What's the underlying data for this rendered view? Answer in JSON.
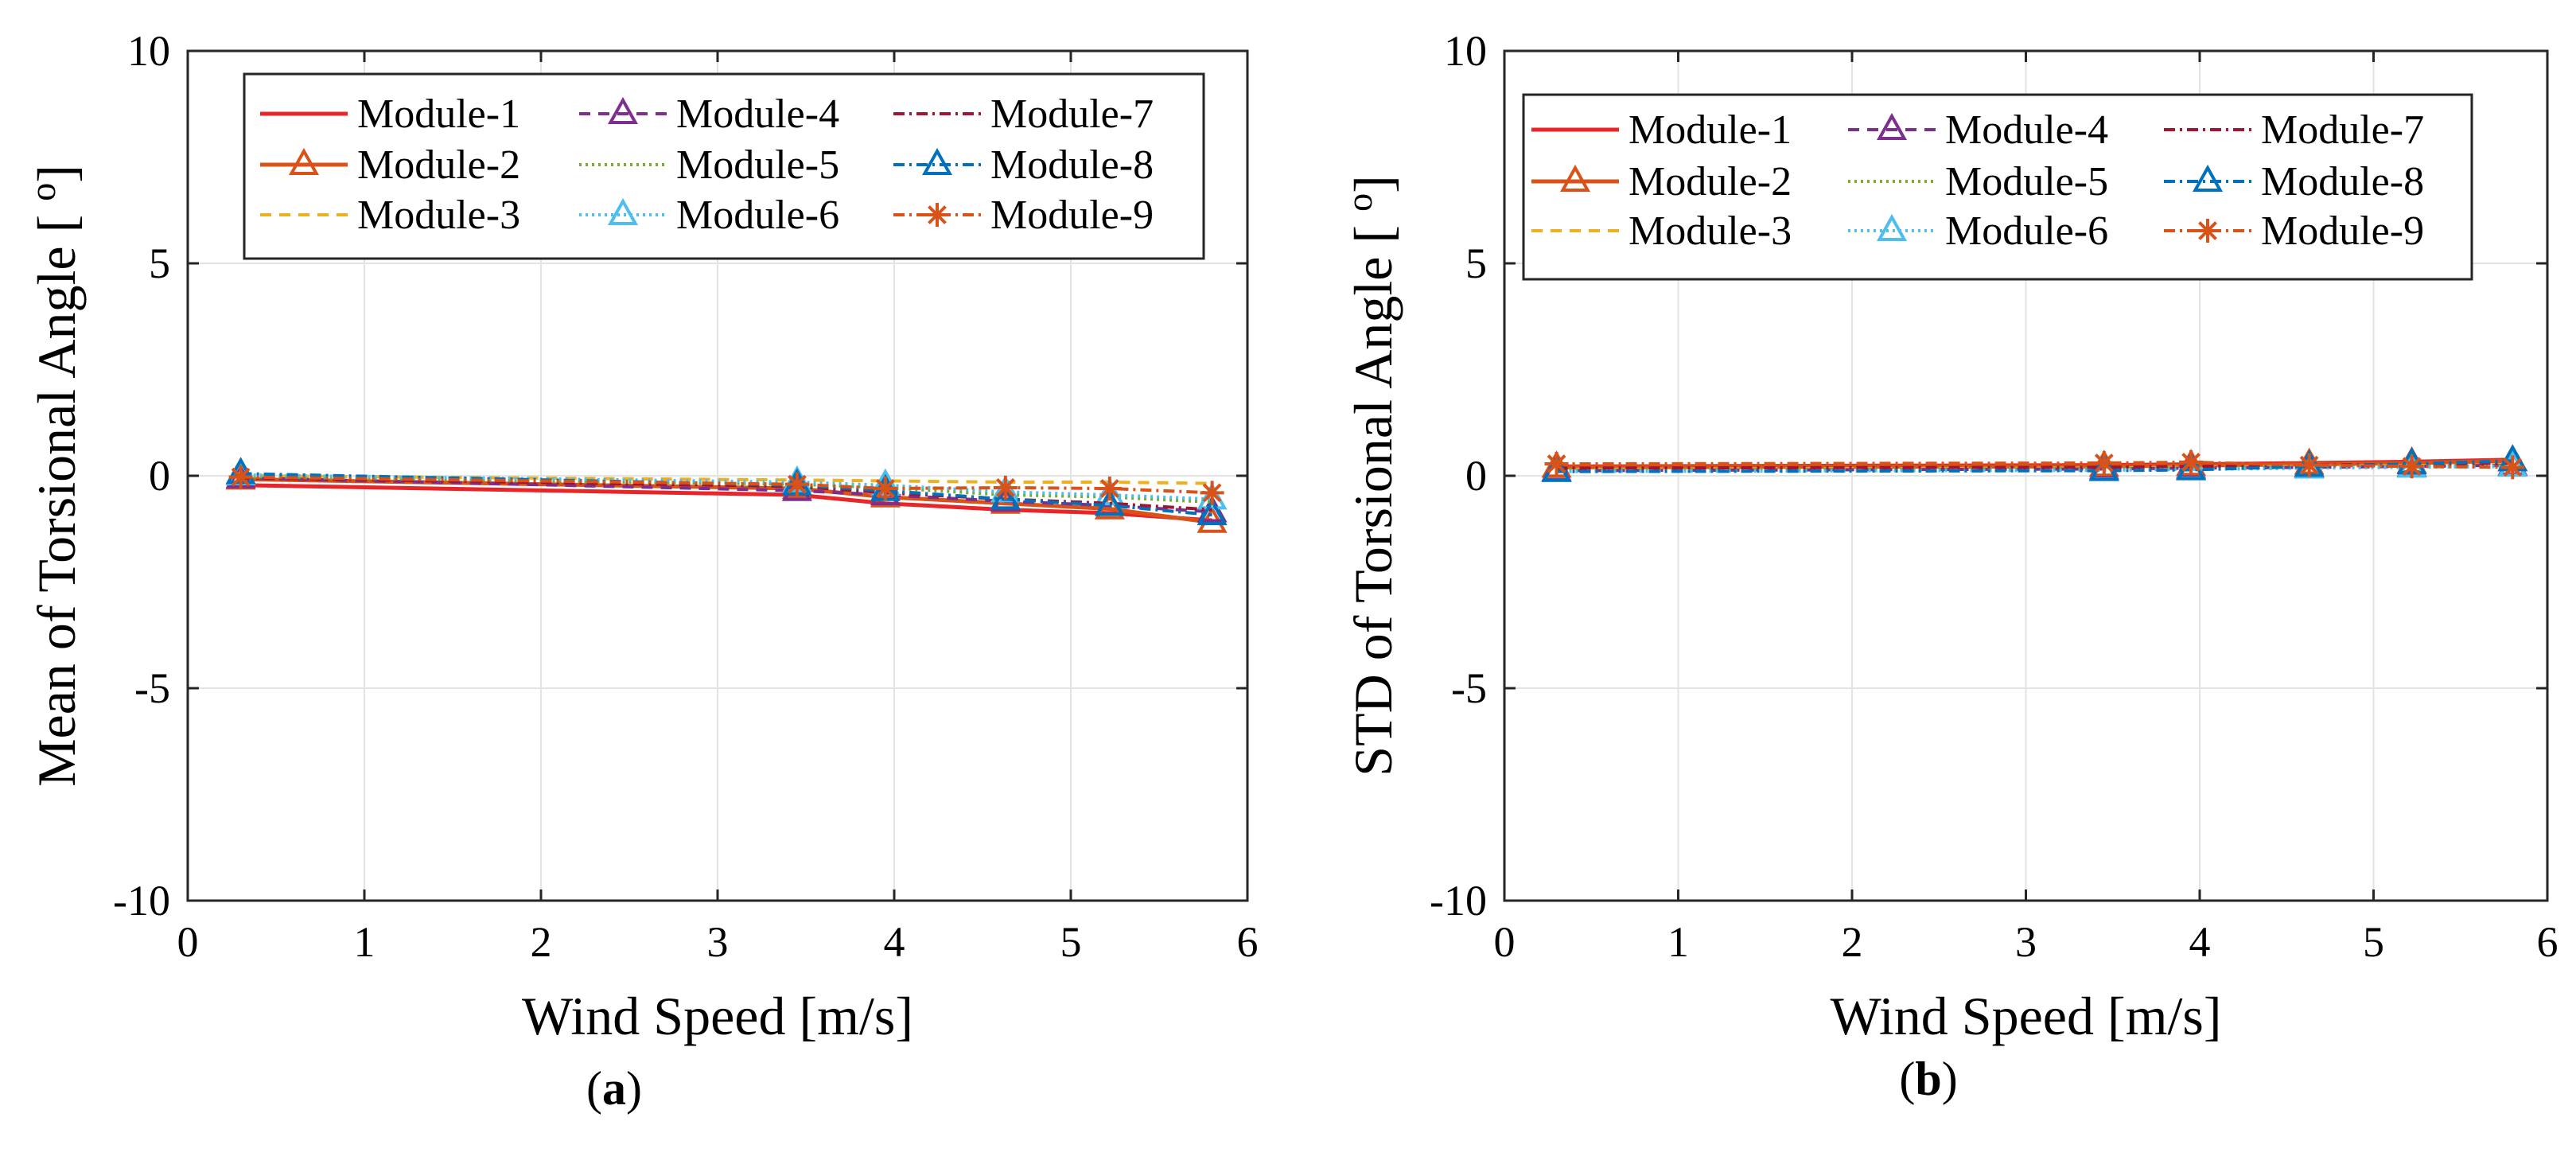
{
  "chart_data": [
    {
      "type": "line",
      "panel": "a",
      "caption_label": "a",
      "xlabel": "Wind Speed [m/s]",
      "ylabel": "Mean of Torsional Angle [",
      "ylabel_unit": "o",
      "ylabel_close": "]",
      "xlim": [
        0,
        6
      ],
      "ylim": [
        -10,
        10
      ],
      "xticks": [
        "0",
        "1",
        "2",
        "3",
        "4",
        "5",
        "6"
      ],
      "yticks": [
        "10",
        "5",
        "0",
        "-5",
        "-10"
      ],
      "grid": true,
      "legend_position": "top",
      "x": [
        0.3,
        3.45,
        3.95,
        4.63,
        5.22,
        5.8
      ],
      "series": [
        {
          "name": "Module-1",
          "color": "#e8262a",
          "dash": "",
          "marker": "none",
          "values": [
            -0.22,
            -0.45,
            -0.65,
            -0.8,
            -0.88,
            -1.05
          ]
        },
        {
          "name": "Module-2",
          "color": "#d95319",
          "dash": "",
          "marker": "triangle",
          "values": [
            -0.08,
            -0.3,
            -0.5,
            -0.65,
            -0.78,
            -1.1
          ]
        },
        {
          "name": "Module-3",
          "color": "#edb120",
          "dash": "14,10",
          "marker": "none",
          "values": [
            0.0,
            -0.1,
            -0.12,
            -0.15,
            -0.15,
            -0.18
          ]
        },
        {
          "name": "Module-4",
          "color": "#7e2f8e",
          "dash": "14,10",
          "marker": "triangle",
          "values": [
            -0.05,
            -0.35,
            -0.45,
            -0.6,
            -0.7,
            -0.85
          ]
        },
        {
          "name": "Module-5",
          "color": "#77ac30",
          "dash": "3,5",
          "marker": "none",
          "values": [
            -0.02,
            -0.2,
            -0.28,
            -0.45,
            -0.5,
            -0.62
          ]
        },
        {
          "name": "Module-6",
          "color": "#4dbeee",
          "dash": "3,5",
          "marker": "triangle",
          "values": [
            0.02,
            -0.15,
            -0.22,
            -0.38,
            -0.45,
            -0.55
          ]
        },
        {
          "name": "Module-7",
          "color": "#a2142f",
          "dash": "14,6,3,6",
          "marker": "none",
          "values": [
            -0.05,
            -0.25,
            -0.4,
            -0.55,
            -0.65,
            -0.8
          ]
        },
        {
          "name": "Module-8",
          "color": "#0072bd",
          "dash": "14,6,3,6",
          "marker": "triangle",
          "values": [
            0.05,
            -0.22,
            -0.35,
            -0.55,
            -0.7,
            -0.92
          ]
        },
        {
          "name": "Module-9",
          "color": "#d95319",
          "dash": "14,6,3,6",
          "marker": "star",
          "values": [
            -0.03,
            -0.2,
            -0.3,
            -0.28,
            -0.3,
            -0.4
          ]
        }
      ]
    },
    {
      "type": "line",
      "panel": "b",
      "caption_label": "b",
      "xlabel": "Wind Speed [m/s]",
      "ylabel": "STD of Torsional Angle [",
      "ylabel_unit": "o",
      "ylabel_close": "]",
      "xlim": [
        0,
        6
      ],
      "ylim": [
        -10,
        10
      ],
      "xticks": [
        "0",
        "1",
        "2",
        "3",
        "4",
        "5",
        "6"
      ],
      "yticks": [
        "10",
        "5",
        "0",
        "-5",
        "-10"
      ],
      "grid": true,
      "legend_position": "top",
      "x": [
        0.3,
        3.45,
        3.95,
        4.63,
        5.22,
        5.8
      ],
      "series": [
        {
          "name": "Module-1",
          "color": "#e8262a",
          "dash": "",
          "marker": "none",
          "values": [
            0.22,
            0.25,
            0.27,
            0.3,
            0.33,
            0.38
          ]
        },
        {
          "name": "Module-2",
          "color": "#d95319",
          "dash": "",
          "marker": "triangle",
          "values": [
            0.2,
            0.22,
            0.24,
            0.27,
            0.3,
            0.35
          ]
        },
        {
          "name": "Module-3",
          "color": "#edb120",
          "dash": "14,10",
          "marker": "none",
          "values": [
            0.15,
            0.18,
            0.2,
            0.22,
            0.24,
            0.26
          ]
        },
        {
          "name": "Module-4",
          "color": "#7e2f8e",
          "dash": "14,10",
          "marker": "triangle",
          "values": [
            0.12,
            0.16,
            0.18,
            0.2,
            0.22,
            0.25
          ]
        },
        {
          "name": "Module-5",
          "color": "#77ac30",
          "dash": "3,5",
          "marker": "none",
          "values": [
            0.14,
            0.17,
            0.18,
            0.2,
            0.22,
            0.24
          ]
        },
        {
          "name": "Module-6",
          "color": "#4dbeee",
          "dash": "3,5",
          "marker": "triangle",
          "values": [
            0.1,
            0.13,
            0.15,
            0.18,
            0.2,
            0.22
          ]
        },
        {
          "name": "Module-7",
          "color": "#a2142f",
          "dash": "14,6,3,6",
          "marker": "none",
          "values": [
            0.18,
            0.2,
            0.22,
            0.25,
            0.27,
            0.3
          ]
        },
        {
          "name": "Module-8",
          "color": "#0072bd",
          "dash": "14,6,3,6",
          "marker": "triangle",
          "values": [
            0.1,
            0.12,
            0.14,
            0.22,
            0.28,
            0.35
          ]
        },
        {
          "name": "Module-9",
          "color": "#d95319",
          "dash": "14,6,3,6",
          "marker": "star",
          "values": [
            0.28,
            0.3,
            0.32,
            0.25,
            0.22,
            0.2
          ]
        }
      ]
    }
  ]
}
